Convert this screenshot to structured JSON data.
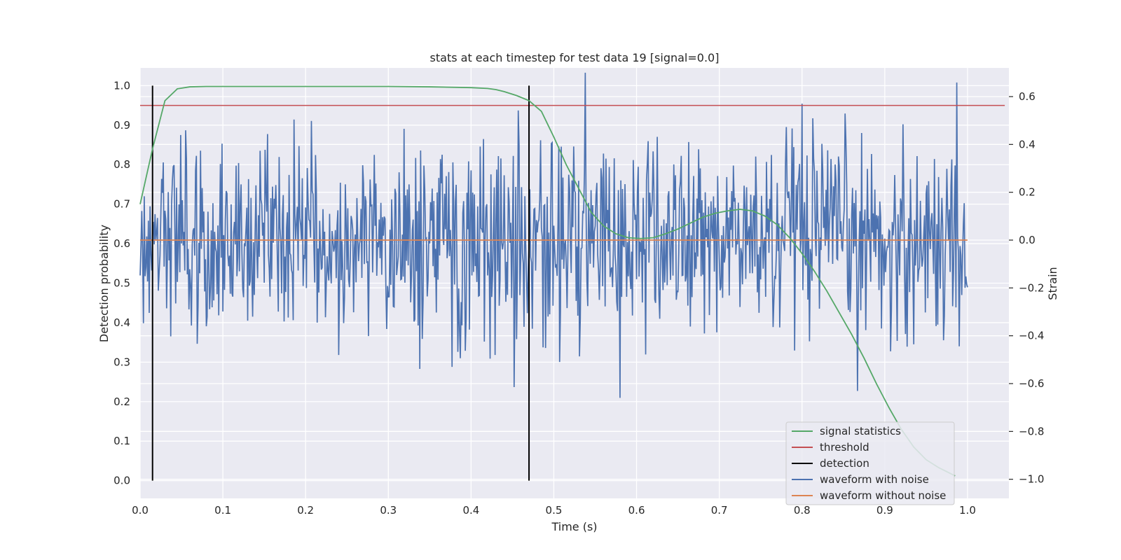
{
  "chart_data": {
    "type": "line",
    "title": "stats at each timestep for test data 19 [signal=0.0]",
    "xlabel": "Time (s)",
    "ylabel": "Detection probability",
    "y2label": "Strain",
    "xlim": [
      0.0,
      1.05
    ],
    "ylim": [
      -0.045,
      1.045
    ],
    "y2lim": [
      -1.08,
      0.72
    ],
    "xticks": [
      0.0,
      0.1,
      0.2,
      0.3,
      0.4,
      0.5,
      0.6,
      0.7,
      0.8,
      0.9,
      1.0
    ],
    "xtick_labels": [
      "0.0",
      "0.1",
      "0.2",
      "0.3",
      "0.4",
      "0.5",
      "0.6",
      "0.7",
      "0.8",
      "0.9",
      "1.0"
    ],
    "yticks": [
      0.0,
      0.1,
      0.2,
      0.3,
      0.4,
      0.5,
      0.6,
      0.7,
      0.8,
      0.9,
      1.0
    ],
    "ytick_labels": [
      "0.0",
      "0.1",
      "0.2",
      "0.3",
      "0.4",
      "0.5",
      "0.6",
      "0.7",
      "0.8",
      "0.9",
      "1.0"
    ],
    "y2ticks": [
      -1.0,
      -0.8,
      -0.6,
      -0.4,
      -0.2,
      0.0,
      0.2,
      0.4,
      0.6
    ],
    "y2tick_labels": [
      "−1.0",
      "−0.8",
      "−0.6",
      "−0.4",
      "−0.2",
      "0.0",
      "0.2",
      "0.4",
      "0.6"
    ],
    "grid": true,
    "legend_position": "bottom-right",
    "series": [
      {
        "name": "signal statistics",
        "axis": "left",
        "color": "#55a868",
        "x": [
          0.0,
          0.015,
          0.03,
          0.045,
          0.06,
          0.08,
          0.1,
          0.2,
          0.3,
          0.35,
          0.4,
          0.42,
          0.43,
          0.44,
          0.455,
          0.47,
          0.485,
          0.5,
          0.515,
          0.53,
          0.545,
          0.56,
          0.575,
          0.59,
          0.605,
          0.62,
          0.635,
          0.65,
          0.665,
          0.68,
          0.695,
          0.71,
          0.725,
          0.74,
          0.755,
          0.77,
          0.785,
          0.8,
          0.815,
          0.83,
          0.845,
          0.86,
          0.875,
          0.89,
          0.905,
          0.92,
          0.935,
          0.95,
          0.965,
          0.985
        ],
        "values": [
          0.7,
          0.84,
          0.962,
          0.992,
          0.997,
          0.998,
          0.998,
          0.998,
          0.998,
          0.997,
          0.995,
          0.993,
          0.99,
          0.985,
          0.975,
          0.962,
          0.935,
          0.87,
          0.8,
          0.74,
          0.68,
          0.645,
          0.625,
          0.615,
          0.613,
          0.615,
          0.625,
          0.637,
          0.652,
          0.667,
          0.677,
          0.683,
          0.687,
          0.683,
          0.67,
          0.648,
          0.615,
          0.575,
          0.53,
          0.48,
          0.425,
          0.37,
          0.31,
          0.245,
          0.185,
          0.13,
          0.085,
          0.053,
          0.033,
          0.012
        ]
      },
      {
        "name": "threshold",
        "axis": "left",
        "color": "#c44e52",
        "x": [
          0.0,
          1.045
        ],
        "values": [
          0.95,
          0.95
        ]
      },
      {
        "name": "detection",
        "axis": "left",
        "color": "#000000",
        "x_positions": [
          0.015,
          0.47
        ],
        "ymin": 0.0,
        "ymax": 1.0
      },
      {
        "name": "waveform with noise",
        "axis": "right",
        "color": "#4c72b0",
        "x_range": [
          0.0,
          1.0
        ],
        "amplitude_std": 0.21,
        "samples": 1000
      },
      {
        "name": "waveform without noise",
        "axis": "right",
        "color": "#dd8452",
        "x": [
          0.0,
          1.0
        ],
        "values": [
          0.0,
          0.0
        ]
      }
    ]
  }
}
